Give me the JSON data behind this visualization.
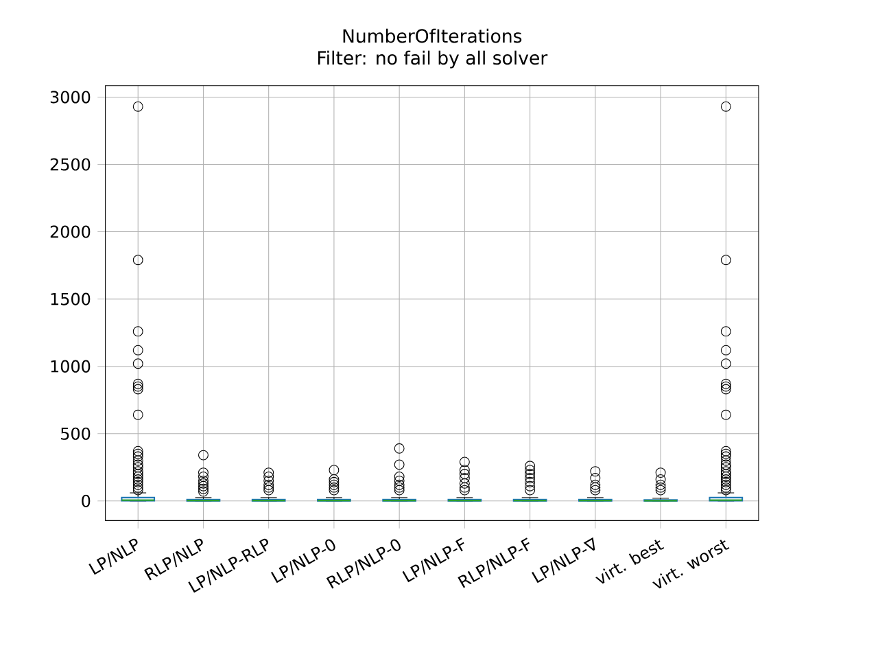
{
  "chart_data": {
    "type": "box",
    "title": "NumberOfIterations",
    "subtitle": "Filter: no fail by all solver",
    "categories": [
      "LP/NLP",
      "RLP/NLP",
      "LP/NLP-RLP",
      "LP/NLP-0",
      "RLP/NLP-0",
      "LP/NLP-F",
      "RLP/NLP-F",
      "LP/NLP-∇",
      "virt. best",
      "virt. worst"
    ],
    "boxes": [
      {
        "low": 0,
        "q1": 2,
        "median": 6,
        "q3": 25,
        "high": 60,
        "outliers": [
          2930,
          1790,
          1260,
          1120,
          1020,
          870,
          850,
          830,
          640,
          370,
          350,
          330,
          300,
          270,
          250,
          220,
          200,
          180,
          160,
          140,
          120,
          100,
          80
        ]
      },
      {
        "low": 0,
        "q1": 1,
        "median": 3,
        "q3": 10,
        "high": 25,
        "outliers": [
          340,
          210,
          180,
          150,
          130,
          110,
          90,
          70
        ]
      },
      {
        "low": 0,
        "q1": 1,
        "median": 3,
        "q3": 10,
        "high": 25,
        "outliers": [
          210,
          180,
          150,
          120,
          100,
          80
        ]
      },
      {
        "low": 0,
        "q1": 1,
        "median": 3,
        "q3": 10,
        "high": 25,
        "outliers": [
          230,
          160,
          140,
          120,
          100,
          80
        ]
      },
      {
        "low": 0,
        "q1": 1,
        "median": 3,
        "q3": 10,
        "high": 25,
        "outliers": [
          390,
          270,
          180,
          150,
          120,
          100,
          80
        ]
      },
      {
        "low": 0,
        "q1": 1,
        "median": 3,
        "q3": 10,
        "high": 25,
        "outliers": [
          290,
          230,
          200,
          170,
          130,
          100,
          80
        ]
      },
      {
        "low": 0,
        "q1": 1,
        "median": 3,
        "q3": 10,
        "high": 25,
        "outliers": [
          260,
          230,
          200,
          170,
          140,
          110,
          80
        ]
      },
      {
        "low": 0,
        "q1": 1,
        "median": 3,
        "q3": 10,
        "high": 25,
        "outliers": [
          220,
          170,
          120,
          100,
          80
        ]
      },
      {
        "low": 0,
        "q1": 1,
        "median": 2,
        "q3": 8,
        "high": 20,
        "outliers": [
          210,
          160,
          120,
          100,
          80
        ]
      },
      {
        "low": 0,
        "q1": 2,
        "median": 6,
        "q3": 25,
        "high": 60,
        "outliers": [
          2930,
          1790,
          1260,
          1120,
          1020,
          870,
          850,
          830,
          640,
          370,
          350,
          330,
          300,
          270,
          250,
          220,
          200,
          180,
          160,
          140,
          120,
          100,
          80
        ]
      }
    ],
    "color": "#1f77b4",
    "marker": "circle",
    "ylim": [
      -146,
      3085
    ],
    "yticks": [
      0,
      500,
      1000,
      1500,
      2000,
      2500,
      3000
    ],
    "grid": true
  }
}
